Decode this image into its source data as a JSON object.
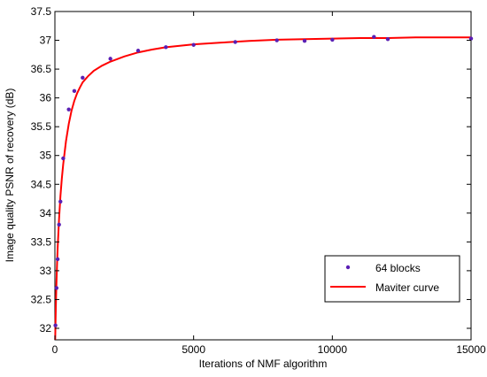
{
  "chart_data": {
    "type": "scatter",
    "title": "",
    "xlabel": "Iterations of NMF algorithm",
    "ylabel": "Image quality PSNR of recovery (dB)",
    "xlim": [
      0,
      15000
    ],
    "ylim": [
      31.8,
      37.5
    ],
    "xticks": [
      0,
      5000,
      10000,
      15000
    ],
    "xtick_labels": [
      "0",
      "5000",
      "10000",
      "15000"
    ],
    "yticks": [
      32,
      32.5,
      33,
      33.5,
      34,
      34.5,
      35,
      35.5,
      36,
      36.5,
      37,
      37.5
    ],
    "ytick_labels": [
      "32",
      "32.5",
      "33",
      "33.5",
      "34",
      "34.5",
      "35",
      "35.5",
      "36",
      "36.5",
      "37",
      "37.5"
    ],
    "grid": false,
    "legend_position": "lower-right",
    "series": [
      {
        "name": "64 blocks",
        "kind": "markers",
        "color": "#5a1fb4",
        "x": [
          20,
          60,
          100,
          150,
          200,
          300,
          500,
          700,
          1000,
          2000,
          3000,
          4000,
          5000,
          6500,
          8000,
          9000,
          10000,
          11500,
          12000,
          15000
        ],
        "y": [
          32.05,
          32.7,
          33.2,
          33.8,
          34.2,
          34.95,
          35.8,
          36.12,
          36.35,
          36.68,
          36.82,
          36.88,
          36.92,
          36.97,
          37.0,
          36.99,
          37.01,
          37.06,
          37.02,
          37.03
        ]
      },
      {
        "name": "Maviter curve",
        "kind": "line",
        "color": "#ff0000",
        "x": [
          10,
          20,
          40,
          60,
          80,
          100,
          150,
          200,
          250,
          300,
          400,
          500,
          600,
          700,
          800,
          900,
          1000,
          1200,
          1400,
          1700,
          2000,
          2500,
          3000,
          3500,
          4000,
          5000,
          6000,
          7000,
          8000,
          9000,
          10000,
          11000,
          12000,
          13000,
          14000,
          15000
        ],
        "y": [
          31.8,
          32.05,
          32.5,
          32.85,
          33.15,
          33.4,
          33.9,
          34.3,
          34.6,
          34.85,
          35.25,
          35.55,
          35.78,
          35.95,
          36.08,
          36.18,
          36.27,
          36.38,
          36.47,
          36.56,
          36.63,
          36.72,
          36.79,
          36.84,
          36.88,
          36.93,
          36.96,
          36.99,
          37.01,
          37.02,
          37.03,
          37.04,
          37.04,
          37.05,
          37.05,
          37.05
        ]
      }
    ]
  }
}
